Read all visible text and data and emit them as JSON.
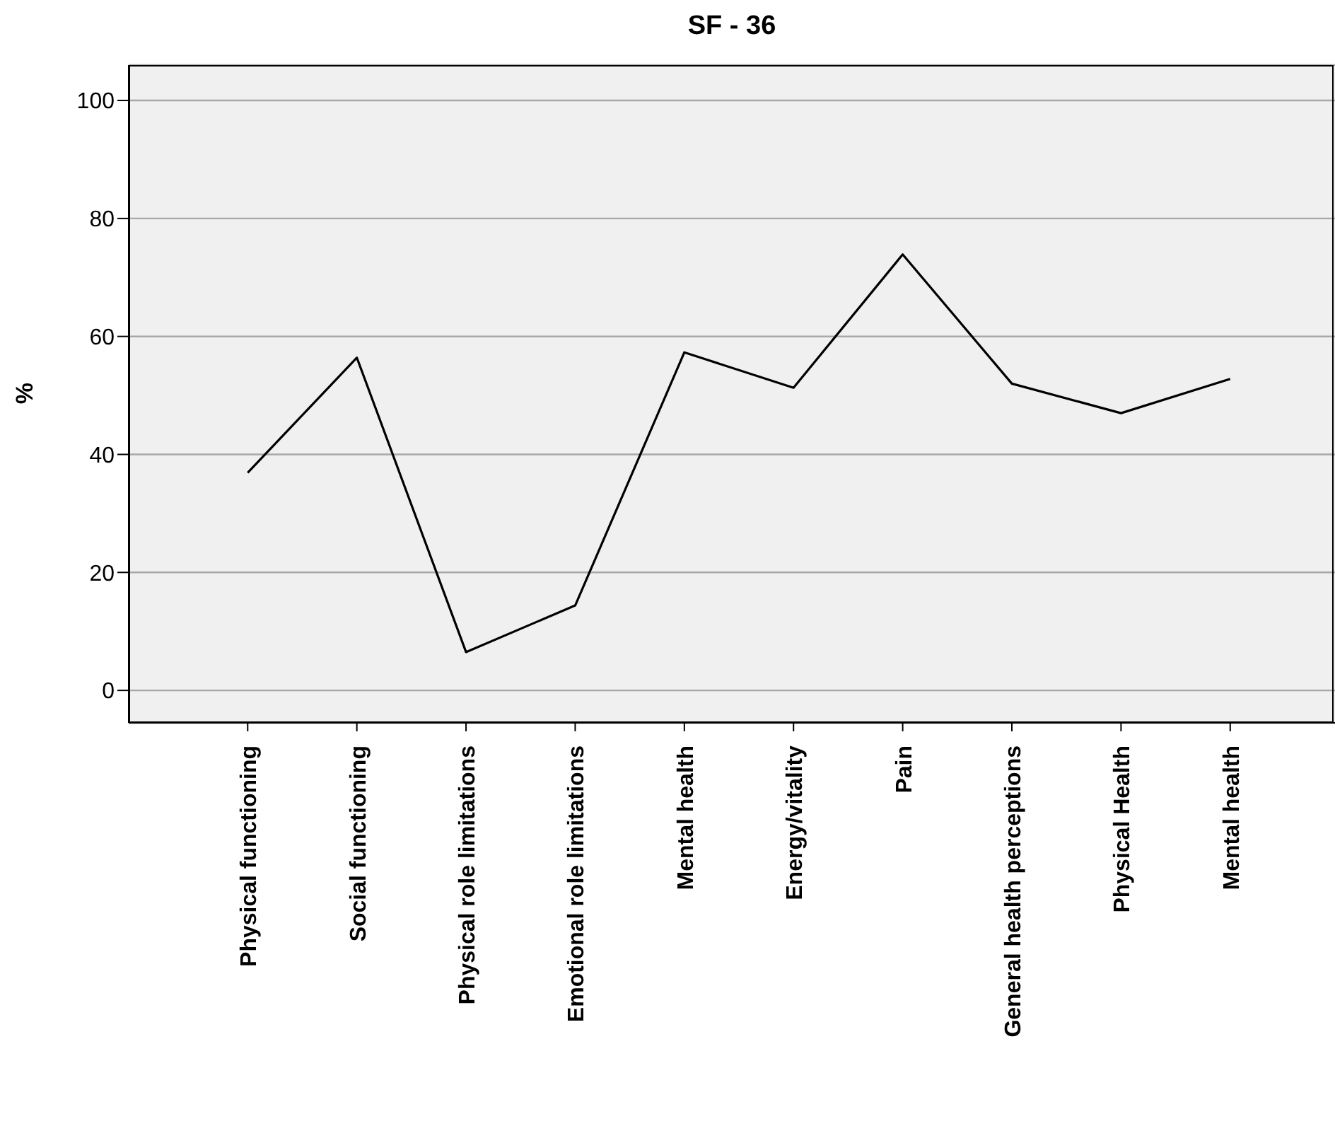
{
  "chart_data": {
    "type": "line",
    "title": "SF - 36",
    "ylabel": "%",
    "categories": [
      "Physical functioning",
      "Social functioning",
      "Physical role  limitations",
      "Emotional role limitations",
      "Mental health",
      "Energy/vitality",
      "Pain",
      "General health perceptions",
      "Physical Health",
      "Mental health"
    ],
    "values": [
      36.9,
      56.4,
      6.5,
      14.4,
      57.3,
      51.3,
      73.9,
      52,
      47,
      52.8
    ],
    "color": "#000000",
    "ylim": [
      -5.5,
      106
    ],
    "yticks": [
      0,
      20,
      40,
      60,
      80,
      100
    ],
    "grid": "y",
    "marker": "none",
    "line_style": "solid"
  }
}
